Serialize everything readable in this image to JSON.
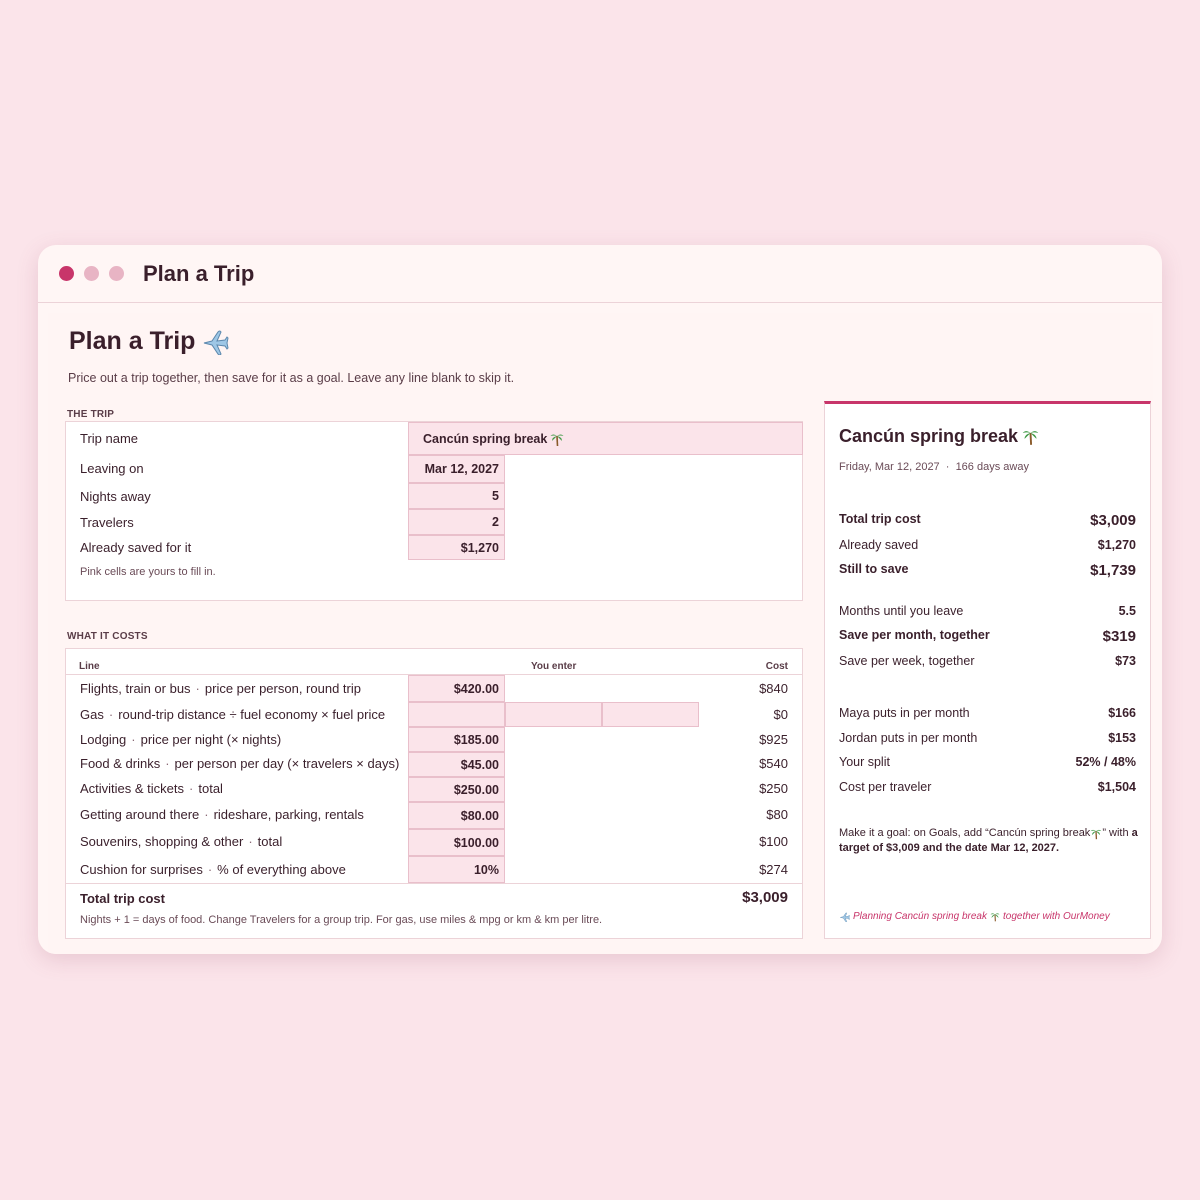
{
  "window": {
    "title": "Plan a Trip"
  },
  "page": {
    "title": "Plan a Trip",
    "title_icon": "airplane-icon",
    "subtitle": "Price out a trip together, then save for it as a goal. Leave any line blank to skip it."
  },
  "trip": {
    "section_label": "THE TRIP",
    "fields": [
      {
        "label": "Trip name",
        "value": "Cancún spring break"
      },
      {
        "label": "Leaving on",
        "value": "Mar 12, 2027"
      },
      {
        "label": "Nights away",
        "value": "5"
      },
      {
        "label": "Travelers",
        "value": "2"
      },
      {
        "label": "Already saved for it",
        "value": "$1,270"
      }
    ],
    "note": "Pink cells are yours to fill in."
  },
  "costs": {
    "section_label": "WHAT IT COSTS",
    "col_line": "Line",
    "col_enter": "You enter",
    "col_cost": "Cost",
    "rows": [
      {
        "name": "Flights, train or bus",
        "hint": "price per person, round trip",
        "input": "$420.00",
        "cost": "$840"
      },
      {
        "name": "Gas",
        "hint": "round-trip distance ÷ fuel economy × fuel price",
        "input": "",
        "cost": "$0"
      },
      {
        "name": "Lodging",
        "hint": "price per night (× nights)",
        "input": "$185.00",
        "cost": "$925"
      },
      {
        "name": "Food & drinks",
        "hint": "per person per day (× travelers × days)",
        "input": "$45.00",
        "cost": "$540"
      },
      {
        "name": "Activities & tickets",
        "hint": "total",
        "input": "$250.00",
        "cost": "$250"
      },
      {
        "name": "Getting around there",
        "hint": "rideshare, parking, rentals",
        "input": "$80.00",
        "cost": "$80"
      },
      {
        "name": "Souvenirs, shopping & other",
        "hint": "total",
        "input": "$100.00",
        "cost": "$100"
      },
      {
        "name": "Cushion for surprises",
        "hint": "% of everything above",
        "input": "10%",
        "cost": "$274"
      }
    ],
    "total_label": "Total trip cost",
    "total_value": "$3,009",
    "footnote": "Nights + 1 = days of food. Change Travelers for a group trip. For gas, use miles & mpg or km & km per litre."
  },
  "summary": {
    "title": "Cancún spring break",
    "title_icon": "palm-tree-icon",
    "date_line": "Friday, Mar 12, 2027  ·  166 days away",
    "group1": [
      {
        "label": "Total trip cost",
        "value": "$3,009"
      },
      {
        "label": "Already saved",
        "value": "$1,270"
      },
      {
        "label": "Still to save",
        "value": "$1,739"
      }
    ],
    "group2": [
      {
        "label": "Months until you leave",
        "value": "5.5"
      },
      {
        "label": "Save per month, together",
        "value": "$319"
      },
      {
        "label": "Save per week, together",
        "value": "$73"
      }
    ],
    "group3": [
      {
        "label": "Maya puts in per month",
        "value": "$166"
      },
      {
        "label": "Jordan puts in per month",
        "value": "$153"
      },
      {
        "label": "Your split",
        "value": "52% / 48%"
      },
      {
        "label": "Cost per traveler",
        "value": "$1,504"
      }
    ],
    "goal_prefix": "Make it a goal: on Goals, add “Cancún spring break",
    "goal_mid": "” with",
    "goal_bold": "a target of $3,009 and the date Mar 12, 2027.",
    "footer_a": "Planning Cancún spring break",
    "footer_b": "together with OurMoney"
  },
  "colors": {
    "accent": "#c8356a",
    "input_fill": "#fbe4ea",
    "background": "#fbe4ea"
  }
}
